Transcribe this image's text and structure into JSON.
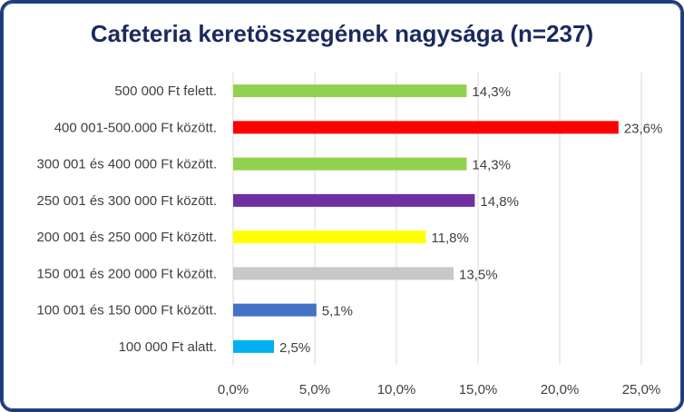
{
  "chart_data": {
    "type": "bar",
    "orientation": "horizontal",
    "title": "Cafeteria keretösszegének nagysága (n=237)",
    "categories": [
      "500 000 Ft felett.",
      "400 001-500.000 Ft között.",
      "300 001 és 400 000 Ft között.",
      "250 001 és 300 000 Ft között.",
      "200 001 és 250 000 Ft között.",
      "150 001 és 200 000 Ft között.",
      "100 001 és 150 000 Ft között.",
      "100 000 Ft alatt."
    ],
    "values": [
      14.3,
      23.6,
      14.3,
      14.8,
      11.8,
      13.5,
      5.1,
      2.5
    ],
    "value_labels": [
      "14,3%",
      "23,6%",
      "14,3%",
      "14,8%",
      "11,8%",
      "13,5%",
      "5,1%",
      "2,5%"
    ],
    "bar_colors": [
      "#92d050",
      "#ff0000",
      "#92d050",
      "#7030a0",
      "#ffff00",
      "#c8c8c8",
      "#4472c4",
      "#00b0f0"
    ],
    "xlim": [
      0,
      25
    ],
    "x_ticks": [
      0,
      5,
      10,
      15,
      20,
      25
    ],
    "x_tick_labels": [
      "0,0%",
      "5,0%",
      "10,0%",
      "15,0%",
      "20,0%",
      "25,0%"
    ],
    "grid": true,
    "legend": "none",
    "xlabel": "",
    "ylabel": ""
  },
  "colors": {
    "frame_border": "#1f3a78",
    "title": "#1b2a5e",
    "gridline": "#d9d9d9",
    "text": "#404040"
  }
}
